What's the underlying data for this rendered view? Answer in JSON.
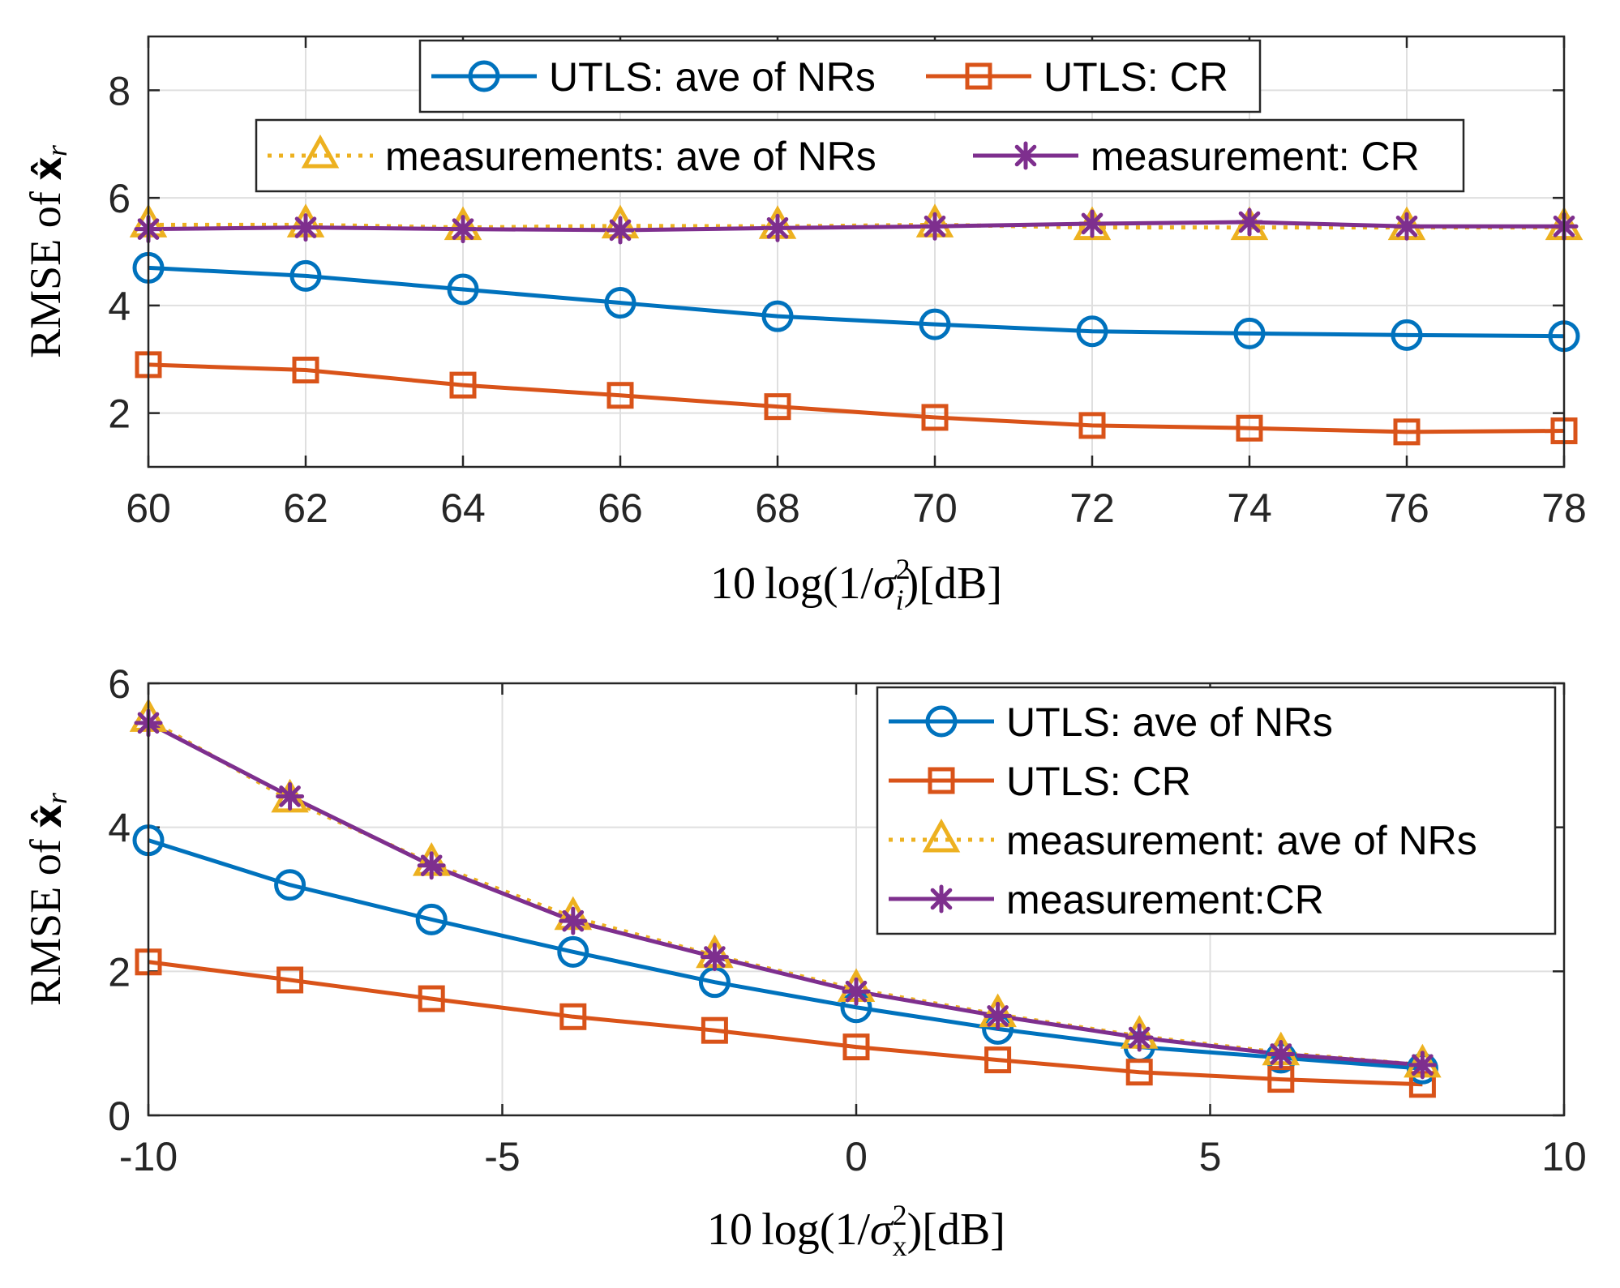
{
  "chart_data": [
    {
      "type": "line",
      "id": "top",
      "ylabel": {
        "text": "RMSE of ",
        "var": "x",
        "sub": "r"
      },
      "xlabel": {
        "prefix": "10",
        "func": "log",
        "open": "(1/",
        "sym": "σ",
        "sub": "i",
        "sup": "2",
        "close": ")[dB]"
      },
      "x": [
        60,
        62,
        64,
        66,
        68,
        70,
        72,
        74,
        76,
        78
      ],
      "xlim": [
        60,
        78
      ],
      "ylim": [
        1,
        9
      ],
      "xticks": [
        60,
        62,
        64,
        66,
        68,
        70,
        72,
        74,
        76,
        78
      ],
      "xtick_labels": [
        "60",
        "62",
        "64",
        "66",
        "68",
        "70",
        "72",
        "74",
        "76",
        "78"
      ],
      "yticks": [
        2,
        4,
        6,
        8
      ],
      "ytick_labels": [
        "2",
        "4",
        "6",
        "8"
      ],
      "grid": true,
      "series": [
        {
          "name": "UTLS: ave of NRs",
          "color": "#0072bd",
          "marker": "circle",
          "dash": "solid",
          "values": [
            4.7,
            4.55,
            4.3,
            4.05,
            3.8,
            3.65,
            3.52,
            3.48,
            3.45,
            3.43
          ]
        },
        {
          "name": "UTLS: CR",
          "color": "#d95319",
          "marker": "square",
          "dash": "solid",
          "values": [
            2.9,
            2.8,
            2.52,
            2.33,
            2.12,
            1.92,
            1.77,
            1.72,
            1.65,
            1.67
          ]
        },
        {
          "name": "measurements: ave of NRs",
          "color": "#edb120",
          "marker": "triangle",
          "dash": "dotted",
          "values": [
            5.5,
            5.5,
            5.45,
            5.48,
            5.47,
            5.5,
            5.45,
            5.45,
            5.45,
            5.45
          ]
        },
        {
          "name": "measurement: CR",
          "color": "#7e2f8e",
          "marker": "star",
          "dash": "solid",
          "values": [
            5.42,
            5.45,
            5.42,
            5.4,
            5.44,
            5.47,
            5.52,
            5.55,
            5.47,
            5.47
          ]
        }
      ],
      "legend": [
        {
          "placement": "top-center",
          "entries": [
            0,
            1
          ]
        },
        {
          "placement": "top-center",
          "entries": [
            2,
            3
          ]
        }
      ]
    },
    {
      "type": "line",
      "id": "bottom",
      "ylabel": {
        "text": "RMSE of ",
        "var": "x",
        "sub": "r"
      },
      "xlabel": {
        "prefix": "10",
        "func": "log",
        "open": "(1/",
        "sym": "σ",
        "sub": "x",
        "sup": "2",
        "close": ")[dB]"
      },
      "x": [
        -10,
        -8,
        -6,
        -4,
        -2,
        0,
        2,
        4,
        6,
        8
      ],
      "xlim": [
        -10,
        10
      ],
      "ylim": [
        0,
        6
      ],
      "xticks": [
        -10,
        -5,
        0,
        5,
        10
      ],
      "xtick_labels": [
        "-10",
        "-5",
        "0",
        "5",
        "10"
      ],
      "yticks": [
        0,
        2,
        4,
        6
      ],
      "ytick_labels": [
        "0",
        "2",
        "4",
        "6"
      ],
      "grid": true,
      "series": [
        {
          "name": "UTLS: ave of NRs",
          "color": "#0072bd",
          "marker": "circle",
          "dash": "solid",
          "values": [
            3.82,
            3.2,
            2.72,
            2.27,
            1.85,
            1.5,
            1.2,
            0.95,
            0.8,
            0.65
          ]
        },
        {
          "name": "UTLS: CR",
          "color": "#d95319",
          "marker": "square",
          "dash": "solid",
          "values": [
            2.13,
            1.88,
            1.62,
            1.37,
            1.18,
            0.95,
            0.77,
            0.6,
            0.5,
            0.43
          ]
        },
        {
          "name": "measurement: ave of NRs",
          "color": "#edb120",
          "marker": "triangle",
          "dash": "dotted",
          "values": [
            5.5,
            4.38,
            3.5,
            2.75,
            2.22,
            1.75,
            1.4,
            1.1,
            0.87,
            0.7
          ]
        },
        {
          "name": "measurement:CR",
          "color": "#7e2f8e",
          "marker": "star",
          "dash": "solid",
          "values": [
            5.45,
            4.43,
            3.47,
            2.7,
            2.2,
            1.72,
            1.38,
            1.08,
            0.85,
            0.7
          ]
        }
      ],
      "legend": [
        {
          "placement": "top-right",
          "entries": [
            0,
            1,
            2,
            3
          ]
        }
      ]
    }
  ]
}
